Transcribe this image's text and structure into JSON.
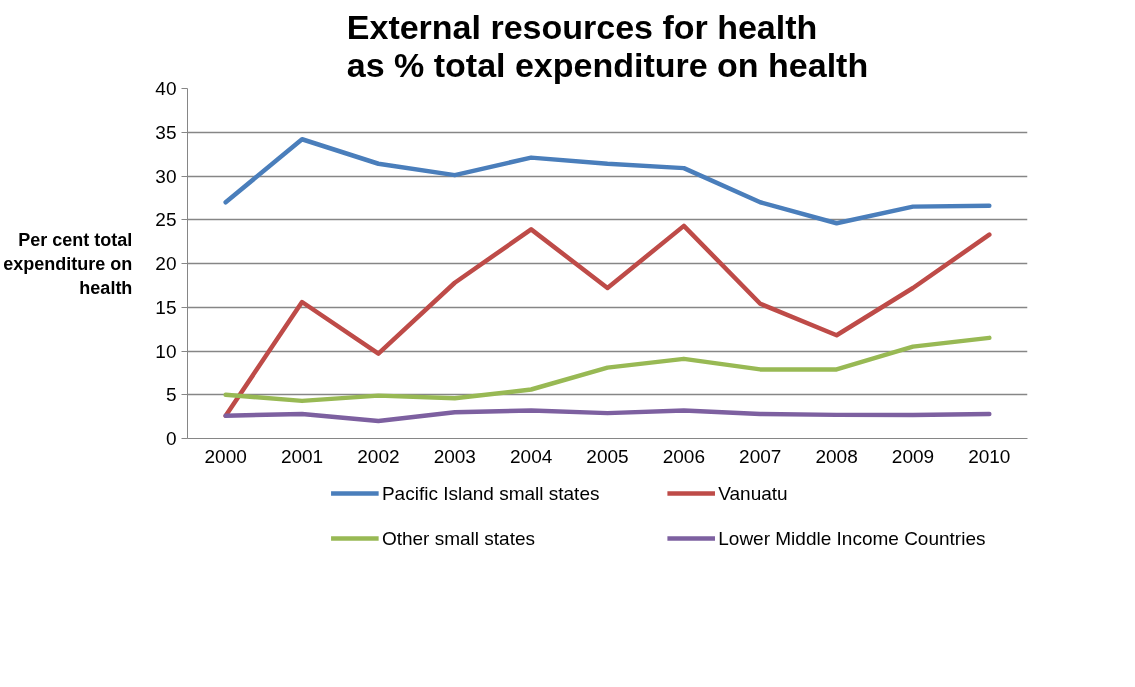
{
  "chart_data": {
    "type": "line",
    "title": "External resources for health as % total expenditure on health",
    "ylabel": "Per cent total expenditure on health",
    "categories": [
      "2000",
      "2001",
      "2002",
      "2003",
      "2004",
      "2005",
      "2006",
      "2007",
      "2008",
      "2009",
      "2010"
    ],
    "series": [
      {
        "name": "Pacific Island small states",
        "color": "#4a7ebb",
        "values": [
          27.0,
          34.2,
          31.4,
          30.1,
          32.1,
          31.4,
          30.9,
          27.0,
          24.6,
          26.5,
          26.6
        ]
      },
      {
        "name": "Vanuatu",
        "color": "#be4b48",
        "values": [
          2.6,
          15.6,
          9.7,
          17.8,
          23.9,
          17.2,
          24.3,
          15.4,
          11.8,
          17.2,
          23.3
        ]
      },
      {
        "name": "Other small states",
        "color": "#98b954",
        "values": [
          5.0,
          4.3,
          4.9,
          4.6,
          5.6,
          8.1,
          9.1,
          7.9,
          7.9,
          10.5,
          11.5
        ]
      },
      {
        "name": "Lower Middle Income Countries",
        "color": "#7d60a0",
        "values": [
          2.6,
          2.8,
          2.0,
          3.0,
          3.2,
          2.9,
          3.2,
          2.8,
          2.7,
          2.7,
          2.8
        ]
      }
    ],
    "ylim": [
      0,
      40
    ],
    "yticks": [
      0,
      5,
      10,
      15,
      20,
      25,
      30,
      35,
      40
    ],
    "grid": "y",
    "legend": "bottom",
    "marker": "none",
    "line_style": "solid"
  }
}
